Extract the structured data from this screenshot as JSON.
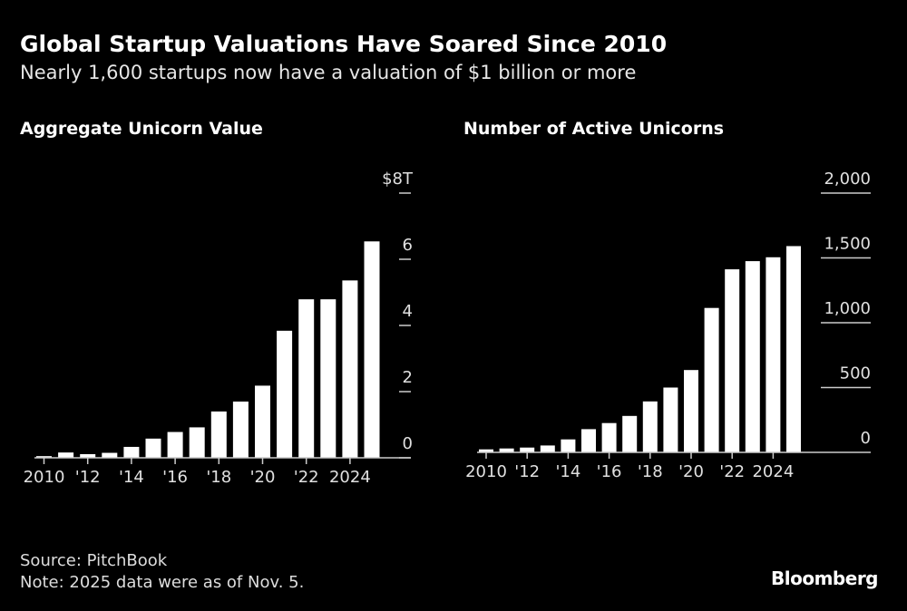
{
  "title": "Global Startup Valuations Have Soared Since 2010",
  "subtitle": "Nearly 1,600 startups now have a valuation of $1 billion or more",
  "source": "Source: PitchBook",
  "note": "Note: 2025 data were as of Nov. 5.",
  "logo": "Bloomberg",
  "colors": {
    "background": "#000000",
    "bars": "#ffffff",
    "axis": "#cccccc"
  },
  "chart_data": [
    {
      "type": "bar",
      "title": "Aggregate Unicorn Value",
      "ylabel": "",
      "xlabel": "",
      "categories": [
        "2010",
        "2011",
        "2012",
        "2013",
        "2014",
        "2015",
        "2016",
        "2017",
        "2018",
        "2019",
        "2020",
        "2021",
        "2022",
        "2023",
        "2024",
        "2025"
      ],
      "values": [
        0.05,
        0.16,
        0.11,
        0.15,
        0.33,
        0.58,
        0.78,
        0.92,
        1.4,
        1.7,
        2.18,
        3.84,
        4.79,
        4.79,
        5.36,
        6.54
      ],
      "ylim": [
        0,
        8
      ],
      "yticks": [
        0,
        2,
        4,
        6,
        8
      ],
      "ytick_labels": [
        "0",
        "2",
        "4",
        "6",
        "$8T"
      ],
      "xtick_labels": [
        "2010",
        "'12",
        "'14",
        "'16",
        "'18",
        "'20",
        "'22",
        "2024"
      ],
      "grid": false
    },
    {
      "type": "bar",
      "title": "Number of Active Unicorns",
      "ylabel": "",
      "xlabel": "",
      "categories": [
        "2010",
        "2011",
        "2012",
        "2013",
        "2014",
        "2015",
        "2016",
        "2017",
        "2018",
        "2019",
        "2020",
        "2021",
        "2022",
        "2023",
        "2024",
        "2025"
      ],
      "values": [
        23,
        30,
        37,
        53,
        100,
        179,
        226,
        281,
        393,
        500,
        635,
        1114,
        1412,
        1475,
        1505,
        1591
      ],
      "ylim": [
        0,
        2000
      ],
      "yticks": [
        0,
        500,
        1000,
        1500,
        2000
      ],
      "ytick_labels": [
        "0",
        "500",
        "1,000",
        "1,500",
        "2,000"
      ],
      "xtick_labels": [
        "2010",
        "'12",
        "'14",
        "'16",
        "'18",
        "'20",
        "'22",
        "2024"
      ],
      "grid": true
    }
  ]
}
